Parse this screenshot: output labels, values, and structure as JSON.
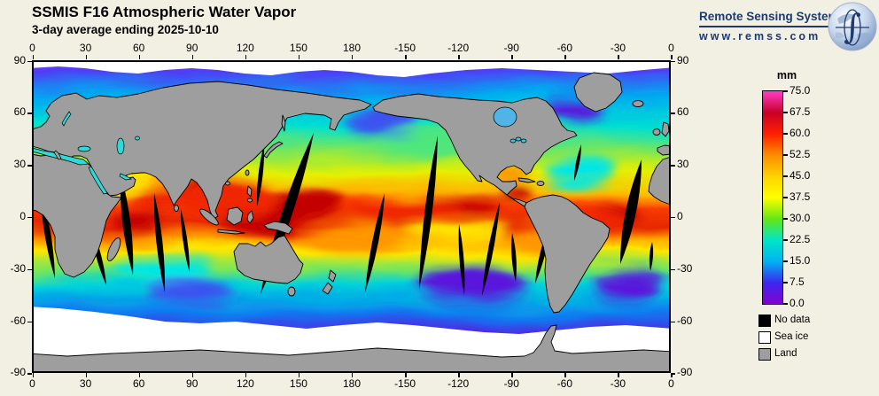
{
  "header": {
    "title": "SSMIS F16 Atmospheric Water Vapor",
    "subtitle": "3-day average ending 2025-10-10"
  },
  "logo": {
    "name": "Remote Sensing Systems",
    "url": "www.remss.com",
    "accent_color": "#1E3A6E",
    "globe_icon": "earth-with-integral"
  },
  "axes": {
    "lon_labels": [
      "0",
      "30",
      "60",
      "90",
      "120",
      "150",
      "180",
      "-150",
      "-120",
      "-90",
      "-60",
      "-30",
      "0"
    ],
    "lat_labels": [
      "90",
      "60",
      "30",
      "0",
      "-30",
      "-60",
      "-90"
    ]
  },
  "colorbar": {
    "unit": "mm",
    "tick_labels": [
      "75.0",
      "67.5",
      "60.0",
      "52.5",
      "45.0",
      "37.5",
      "30.0",
      "22.5",
      "15.0",
      "7.5",
      "0.0"
    ],
    "stops": [
      {
        "value": 0.0,
        "color": "#8400D2"
      },
      {
        "value": 7.5,
        "color": "#3C28F0"
      },
      {
        "value": 15.0,
        "color": "#00B4F0"
      },
      {
        "value": 22.5,
        "color": "#00E6C8"
      },
      {
        "value": 30.0,
        "color": "#64E614"
      },
      {
        "value": 37.5,
        "color": "#FFFF00"
      },
      {
        "value": 45.0,
        "color": "#FFD200"
      },
      {
        "value": 52.5,
        "color": "#FF8C00"
      },
      {
        "value": 60.0,
        "color": "#FF1E00"
      },
      {
        "value": 67.5,
        "color": "#C80028"
      },
      {
        "value": 75.0,
        "color": "#FF3CC8"
      }
    ]
  },
  "legend": {
    "items": [
      {
        "label": "No data",
        "color": "#000000"
      },
      {
        "label": "Sea ice",
        "color": "#FFFFFF"
      },
      {
        "label": "Land",
        "color": "#9E9E9E"
      }
    ]
  }
}
